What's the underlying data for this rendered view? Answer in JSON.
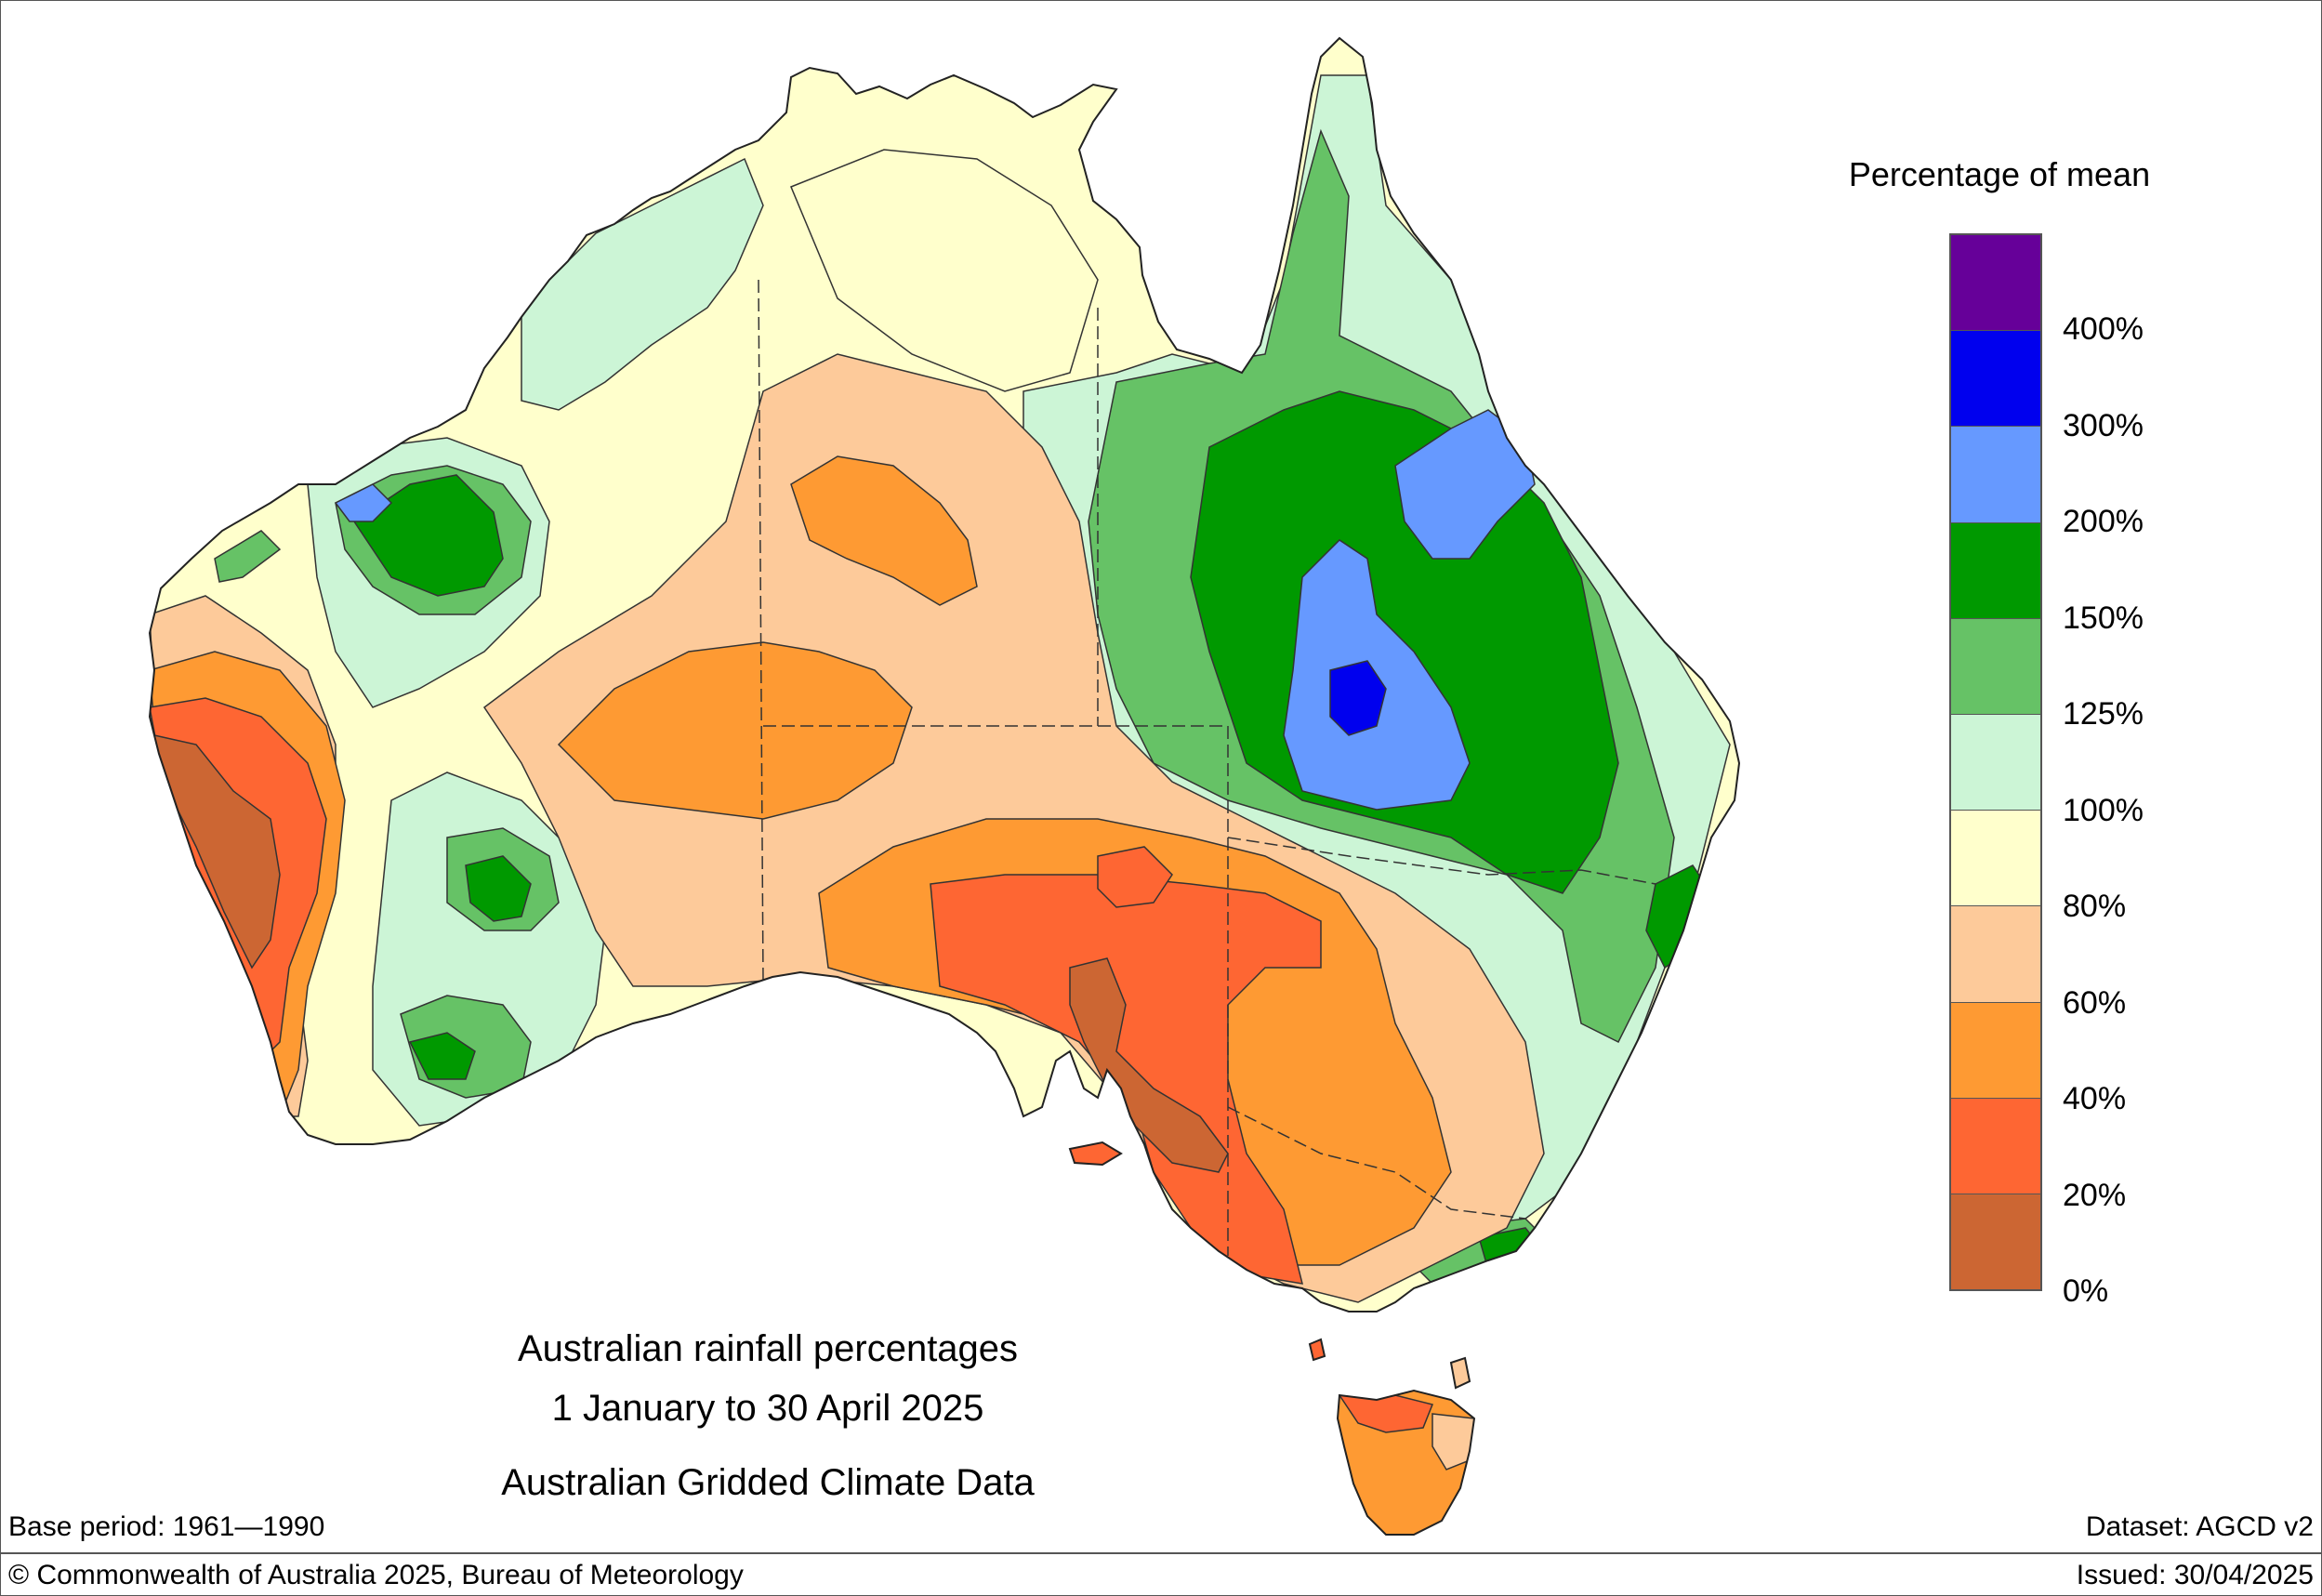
{
  "title": {
    "line1": "Australian rainfall percentages",
    "line2": "1 January to 30 April 2025",
    "line3": "Australian Gridded Climate Data"
  },
  "legend": {
    "title": "Percentage of mean",
    "bins": [
      {
        "color": "#660099"
      },
      {
        "color": "#0000ee"
      },
      {
        "color": "#6699ff"
      },
      {
        "color": "#009900"
      },
      {
        "color": "#66c266"
      },
      {
        "color": "#ccf5d6"
      },
      {
        "color": "#ffffcc"
      },
      {
        "color": "#fdca9a"
      },
      {
        "color": "#fe9a33"
      },
      {
        "color": "#fe6633"
      },
      {
        "color": "#cc6633"
      }
    ],
    "labels": [
      "400%",
      "300%",
      "200%",
      "150%",
      "125%",
      "100%",
      "80%",
      "60%",
      "40%",
      "20%",
      "0%"
    ]
  },
  "footer": {
    "base_period": "Base period: 1961—1990",
    "dataset": "Dataset: AGCD v2",
    "copyright": "© Commonwealth of Australia 2025, Bureau of Meteorology",
    "issued": "Issued: 30/04/2025"
  }
}
